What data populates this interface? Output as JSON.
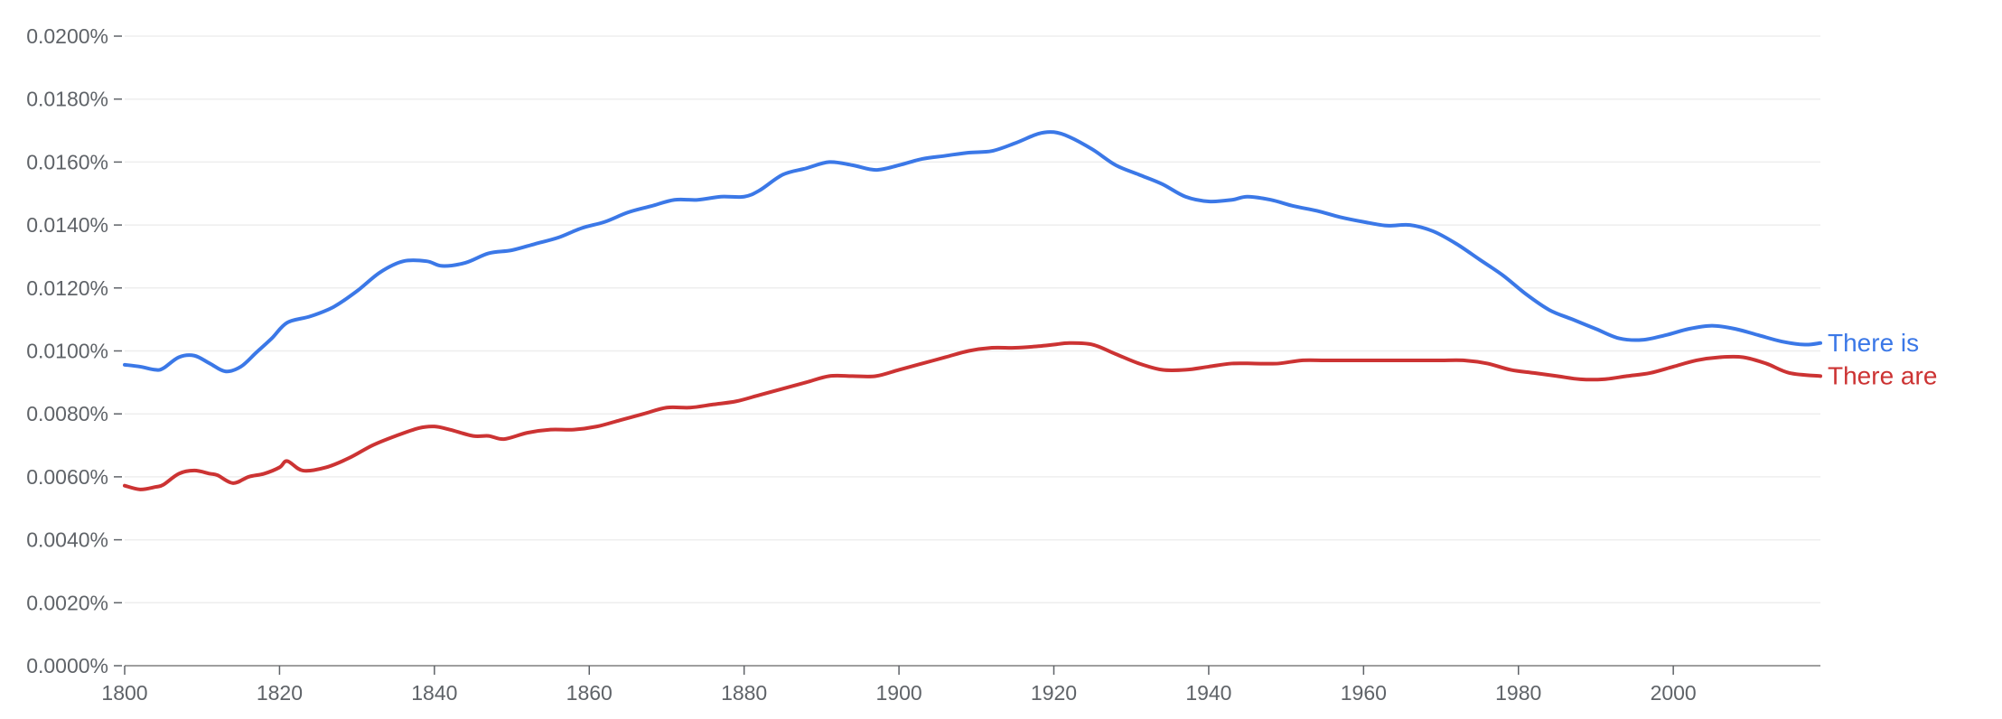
{
  "chart_data": {
    "type": "line",
    "title": "",
    "xlabel": "",
    "ylabel": "",
    "xlim": [
      1800,
      2019
    ],
    "ylim": [
      0,
      0.02
    ],
    "grid": true,
    "legend": "inline-right",
    "x_ticks": [
      1800,
      1820,
      1840,
      1860,
      1880,
      1900,
      1920,
      1940,
      1960,
      1980,
      2000
    ],
    "x_tick_labels": [
      "1800",
      "1820",
      "1840",
      "1860",
      "1880",
      "1900",
      "1920",
      "1940",
      "1960",
      "1980",
      "2000"
    ],
    "y_ticks": [
      0,
      0.002,
      0.004,
      0.006,
      0.008,
      0.01,
      0.012,
      0.014,
      0.016,
      0.018,
      0.02
    ],
    "y_tick_labels": [
      "0.0000%",
      "0.0020%",
      "0.0040%",
      "0.0060%",
      "0.0080%",
      "0.0100%",
      "0.0120%",
      "0.0140%",
      "0.0160%",
      "0.0180%",
      "0.0200%"
    ],
    "series": [
      {
        "name": "There is",
        "color": "#3b78e7",
        "points": [
          [
            1800,
            0.00956
          ],
          [
            1802,
            0.0095
          ],
          [
            1804,
            0.0094
          ],
          [
            1805,
            0.00945
          ],
          [
            1807,
            0.0098
          ],
          [
            1809,
            0.00985
          ],
          [
            1811,
            0.0096
          ],
          [
            1813,
            0.00935
          ],
          [
            1815,
            0.0095
          ],
          [
            1817,
            0.00995
          ],
          [
            1819,
            0.0104
          ],
          [
            1821,
            0.0109
          ],
          [
            1824,
            0.0111
          ],
          [
            1827,
            0.0114
          ],
          [
            1830,
            0.0119
          ],
          [
            1833,
            0.0125
          ],
          [
            1836,
            0.01285
          ],
          [
            1839,
            0.01285
          ],
          [
            1841,
            0.0127
          ],
          [
            1844,
            0.0128
          ],
          [
            1847,
            0.0131
          ],
          [
            1850,
            0.0132
          ],
          [
            1853,
            0.0134
          ],
          [
            1856,
            0.0136
          ],
          [
            1859,
            0.0139
          ],
          [
            1862,
            0.0141
          ],
          [
            1865,
            0.0144
          ],
          [
            1868,
            0.0146
          ],
          [
            1871,
            0.0148
          ],
          [
            1874,
            0.0148
          ],
          [
            1877,
            0.0149
          ],
          [
            1880,
            0.0149
          ],
          [
            1882,
            0.0151
          ],
          [
            1885,
            0.0156
          ],
          [
            1888,
            0.0158
          ],
          [
            1891,
            0.016
          ],
          [
            1894,
            0.0159
          ],
          [
            1897,
            0.01575
          ],
          [
            1900,
            0.0159
          ],
          [
            1903,
            0.0161
          ],
          [
            1906,
            0.0162
          ],
          [
            1909,
            0.0163
          ],
          [
            1912,
            0.01635
          ],
          [
            1915,
            0.0166
          ],
          [
            1918,
            0.0169
          ],
          [
            1920,
            0.01695
          ],
          [
            1922,
            0.0168
          ],
          [
            1925,
            0.0164
          ],
          [
            1928,
            0.0159
          ],
          [
            1931,
            0.0156
          ],
          [
            1934,
            0.0153
          ],
          [
            1937,
            0.0149
          ],
          [
            1940,
            0.01475
          ],
          [
            1943,
            0.0148
          ],
          [
            1945,
            0.0149
          ],
          [
            1948,
            0.0148
          ],
          [
            1951,
            0.0146
          ],
          [
            1954,
            0.01445
          ],
          [
            1957,
            0.01425
          ],
          [
            1960,
            0.0141
          ],
          [
            1963,
            0.01398
          ],
          [
            1966,
            0.014
          ],
          [
            1969,
            0.0138
          ],
          [
            1972,
            0.0134
          ],
          [
            1975,
            0.0129
          ],
          [
            1978,
            0.0124
          ],
          [
            1981,
            0.0118
          ],
          [
            1984,
            0.0113
          ],
          [
            1987,
            0.011
          ],
          [
            1990,
            0.0107
          ],
          [
            1993,
            0.0104
          ],
          [
            1996,
            0.01035
          ],
          [
            1999,
            0.0105
          ],
          [
            2002,
            0.0107
          ],
          [
            2005,
            0.0108
          ],
          [
            2008,
            0.0107
          ],
          [
            2011,
            0.0105
          ],
          [
            2014,
            0.0103
          ],
          [
            2017,
            0.0102
          ],
          [
            2019,
            0.01025
          ]
        ]
      },
      {
        "name": "There are",
        "color": "#cc3333",
        "points": [
          [
            1800,
            0.00572
          ],
          [
            1802,
            0.0056
          ],
          [
            1804,
            0.00568
          ],
          [
            1805,
            0.00575
          ],
          [
            1807,
            0.0061
          ],
          [
            1809,
            0.0062
          ],
          [
            1811,
            0.0061
          ],
          [
            1812,
            0.00605
          ],
          [
            1814,
            0.0058
          ],
          [
            1816,
            0.006
          ],
          [
            1818,
            0.0061
          ],
          [
            1820,
            0.0063
          ],
          [
            1821,
            0.0065
          ],
          [
            1823,
            0.0062
          ],
          [
            1826,
            0.0063
          ],
          [
            1829,
            0.0066
          ],
          [
            1832,
            0.007
          ],
          [
            1835,
            0.0073
          ],
          [
            1838,
            0.00755
          ],
          [
            1840,
            0.0076
          ],
          [
            1842,
            0.0075
          ],
          [
            1845,
            0.0073
          ],
          [
            1847,
            0.0073
          ],
          [
            1849,
            0.0072
          ],
          [
            1852,
            0.0074
          ],
          [
            1855,
            0.0075
          ],
          [
            1858,
            0.0075
          ],
          [
            1861,
            0.0076
          ],
          [
            1864,
            0.0078
          ],
          [
            1867,
            0.008
          ],
          [
            1870,
            0.0082
          ],
          [
            1873,
            0.0082
          ],
          [
            1876,
            0.0083
          ],
          [
            1879,
            0.0084
          ],
          [
            1882,
            0.0086
          ],
          [
            1885,
            0.0088
          ],
          [
            1888,
            0.009
          ],
          [
            1891,
            0.0092
          ],
          [
            1894,
            0.0092
          ],
          [
            1897,
            0.0092
          ],
          [
            1900,
            0.0094
          ],
          [
            1903,
            0.0096
          ],
          [
            1906,
            0.0098
          ],
          [
            1909,
            0.01
          ],
          [
            1912,
            0.0101
          ],
          [
            1915,
            0.0101
          ],
          [
            1918,
            0.01015
          ],
          [
            1920,
            0.0102
          ],
          [
            1922,
            0.01025
          ],
          [
            1925,
            0.0102
          ],
          [
            1928,
            0.0099
          ],
          [
            1931,
            0.0096
          ],
          [
            1934,
            0.0094
          ],
          [
            1937,
            0.0094
          ],
          [
            1940,
            0.0095
          ],
          [
            1943,
            0.0096
          ],
          [
            1946,
            0.0096
          ],
          [
            1949,
            0.0096
          ],
          [
            1952,
            0.0097
          ],
          [
            1955,
            0.0097
          ],
          [
            1958,
            0.0097
          ],
          [
            1961,
            0.0097
          ],
          [
            1964,
            0.0097
          ],
          [
            1967,
            0.0097
          ],
          [
            1970,
            0.0097
          ],
          [
            1973,
            0.0097
          ],
          [
            1976,
            0.0096
          ],
          [
            1979,
            0.0094
          ],
          [
            1982,
            0.0093
          ],
          [
            1985,
            0.0092
          ],
          [
            1988,
            0.0091
          ],
          [
            1991,
            0.0091
          ],
          [
            1994,
            0.0092
          ],
          [
            1997,
            0.0093
          ],
          [
            2000,
            0.0095
          ],
          [
            2003,
            0.0097
          ],
          [
            2006,
            0.0098
          ],
          [
            2009,
            0.0098
          ],
          [
            2012,
            0.0096
          ],
          [
            2015,
            0.0093
          ],
          [
            2019,
            0.0092
          ]
        ]
      }
    ]
  }
}
